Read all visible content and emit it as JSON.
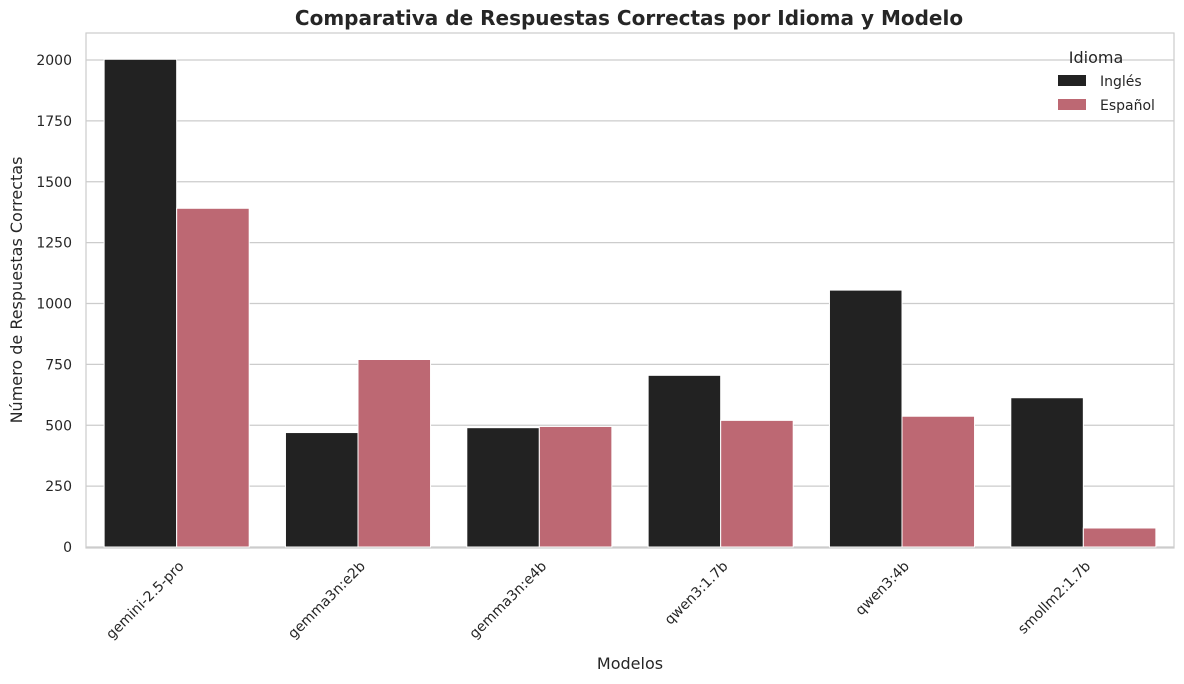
{
  "chart_data": {
    "type": "bar",
    "title": "Comparativa de Respuestas Correctas por Idioma y Modelo",
    "xlabel": "Modelos",
    "ylabel": "Número de Respuestas Correctas",
    "categories": [
      "gemini-2.5-pro",
      "gemma3n:e2b",
      "gemma3n:e4b",
      "qwen3:1.7b",
      "qwen3:4b",
      "smollm2:1.7b"
    ],
    "series": [
      {
        "name": "Inglés",
        "color": "#222222",
        "values": [
          2003,
          470,
          490,
          705,
          1055,
          613
        ]
      },
      {
        "name": "Español",
        "color": "#bd6873",
        "values": [
          1391,
          770,
          495,
          520,
          537,
          78
        ]
      }
    ],
    "ylim": [
      0,
      2100
    ],
    "yticks": [
      0,
      250,
      500,
      750,
      1000,
      1250,
      1500,
      1750,
      2000
    ],
    "legend": {
      "title": "Idioma",
      "position": "top-right"
    },
    "grid": "horizontal"
  }
}
